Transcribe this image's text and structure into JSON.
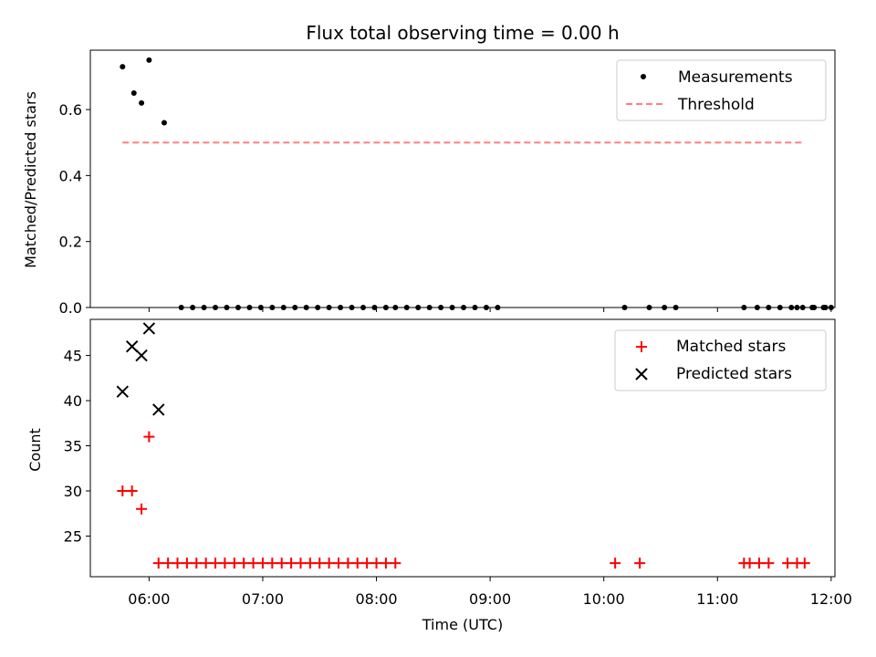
{
  "chart_data": [
    {
      "type": "scatter",
      "title": "Flux total observing time = 0.00 h",
      "xlabel": "",
      "ylabel": "Matched/Predicted stars",
      "xlim": [
        "05:29",
        "12:02"
      ],
      "ylim": [
        0,
        0.78
      ],
      "yticks": [
        0.0,
        0.2,
        0.4,
        0.6
      ],
      "ytick_labels": [
        "0.0",
        "0.2",
        "0.4",
        "0.6"
      ],
      "grid": false,
      "legend": "top-right",
      "series": [
        {
          "name": "Measurements",
          "marker": "dot",
          "color": "#000000",
          "x": [
            "05:46",
            "05:52",
            "05:56",
            "06:00",
            "06:08",
            "06:17",
            "06:23",
            "06:29",
            "06:35",
            "06:41",
            "06:47",
            "06:53",
            "06:59",
            "07:05",
            "07:11",
            "07:17",
            "07:23",
            "07:29",
            "07:35",
            "07:41",
            "07:47",
            "07:53",
            "07:59",
            "08:05",
            "08:10",
            "08:16",
            "08:22",
            "08:28",
            "08:34",
            "08:40",
            "08:46",
            "08:52",
            "08:58",
            "09:04",
            "10:11",
            "10:24",
            "10:32",
            "10:38",
            "11:14",
            "11:21",
            "11:27",
            "11:33",
            "11:39",
            "11:45",
            "11:51",
            "11:57",
            "12:00",
            "11:42",
            "11:50",
            "11:56"
          ],
          "y": [
            0.73,
            0.65,
            0.62,
            0.75,
            0.56,
            0,
            0,
            0,
            0,
            0,
            0,
            0,
            0,
            0,
            0,
            0,
            0,
            0,
            0,
            0,
            0,
            0,
            0,
            0,
            0,
            0,
            0,
            0,
            0,
            0,
            0,
            0,
            0,
            0,
            0,
            0,
            0,
            0,
            0,
            0,
            0,
            0,
            0,
            0,
            0,
            0,
            0,
            0,
            0,
            0
          ]
        },
        {
          "name": "Threshold",
          "style": "dashed",
          "color": "#ff7f7f",
          "x": [
            "05:46",
            "11:46"
          ],
          "y": [
            0.5,
            0.5
          ]
        }
      ]
    },
    {
      "type": "scatter",
      "title": "",
      "xlabel": "Time (UTC)",
      "ylabel": "Count",
      "xlim": [
        "05:29",
        "12:02"
      ],
      "ylim": [
        20.5,
        49
      ],
      "yticks": [
        25,
        30,
        35,
        40,
        45
      ],
      "ytick_labels": [
        "25",
        "30",
        "35",
        "40",
        "45"
      ],
      "xticks": [
        "06:00",
        "07:00",
        "08:00",
        "09:00",
        "10:00",
        "11:00",
        "12:00"
      ],
      "xtick_labels": [
        "06:00",
        "07:00",
        "08:00",
        "09:00",
        "10:00",
        "11:00",
        "12:00"
      ],
      "grid": false,
      "legend": "top-right",
      "series": [
        {
          "name": "Matched stars",
          "marker": "plus",
          "color": "#ff0000",
          "x": [
            "05:46",
            "05:51",
            "05:56",
            "06:00",
            "06:05",
            "06:10",
            "06:15",
            "06:20",
            "06:25",
            "06:30",
            "06:35",
            "06:40",
            "06:45",
            "06:50",
            "06:55",
            "07:00",
            "07:05",
            "07:10",
            "07:15",
            "07:20",
            "07:25",
            "07:30",
            "07:35",
            "07:40",
            "07:45",
            "07:50",
            "07:55",
            "08:00",
            "08:05",
            "08:10",
            "10:06",
            "10:19",
            "11:14",
            "11:17",
            "11:22",
            "11:27",
            "11:37",
            "11:42",
            "11:46"
          ],
          "y": [
            30,
            30,
            28,
            36,
            22,
            22,
            22,
            22,
            22,
            22,
            22,
            22,
            22,
            22,
            22,
            22,
            22,
            22,
            22,
            22,
            22,
            22,
            22,
            22,
            22,
            22,
            22,
            22,
            22,
            22,
            22,
            22,
            22,
            22,
            22,
            22,
            22,
            22,
            22
          ]
        },
        {
          "name": "Predicted stars",
          "marker": "x",
          "color": "#000000",
          "x": [
            "05:46",
            "05:51",
            "05:56",
            "06:00",
            "06:05"
          ],
          "y": [
            41,
            46,
            45,
            48,
            39
          ]
        }
      ]
    }
  ]
}
